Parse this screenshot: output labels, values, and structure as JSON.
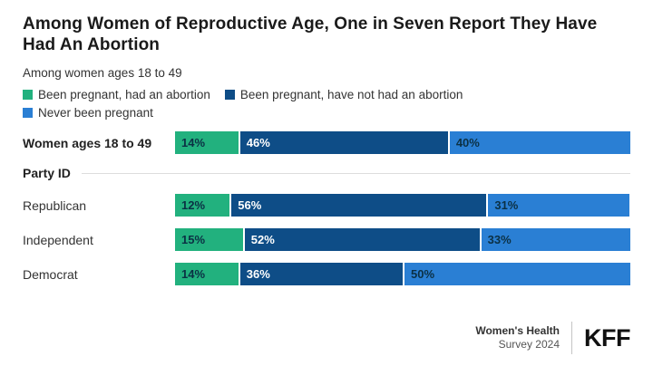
{
  "title": "Among Women of Reproductive Age, One in Seven Report They Have\nHad An Abortion",
  "subtitle": "Among women ages 18 to 49",
  "legend": [
    {
      "label": "Been pregnant, had an abortion",
      "color": "#22B17E"
    },
    {
      "label": "Been pregnant, have not had an abortion",
      "color": "#0E4D87"
    },
    {
      "label": "Never been pregnant",
      "color": "#2A7FD4"
    }
  ],
  "section_label": "Party ID",
  "chart_data": {
    "type": "bar",
    "stacked": true,
    "orientation": "horizontal",
    "value_suffix": "%",
    "axis_range": [
      0,
      100
    ],
    "grid": false,
    "legend_position": "top",
    "categories": [
      "Women ages 18 to 49",
      "Republican",
      "Independent",
      "Democrat"
    ],
    "category_emphasis": [
      true,
      false,
      false,
      false
    ],
    "series": [
      {
        "name": "Been pregnant, had an abortion",
        "color": "#22B17E",
        "label_color": "#0B3044",
        "values": [
          14,
          12,
          15,
          14
        ]
      },
      {
        "name": "Been pregnant, have not had an abortion",
        "color": "#0E4D87",
        "label_color": "#FFFFFF",
        "values": [
          46,
          56,
          52,
          36
        ]
      },
      {
        "name": "Never been pregnant",
        "color": "#2A7FD4",
        "label_color": "#0B3044",
        "values": [
          40,
          31,
          33,
          50
        ]
      }
    ]
  },
  "footer": {
    "source_line1": "Women's Health",
    "source_line2": "Survey 2024",
    "logo": "KFF"
  }
}
